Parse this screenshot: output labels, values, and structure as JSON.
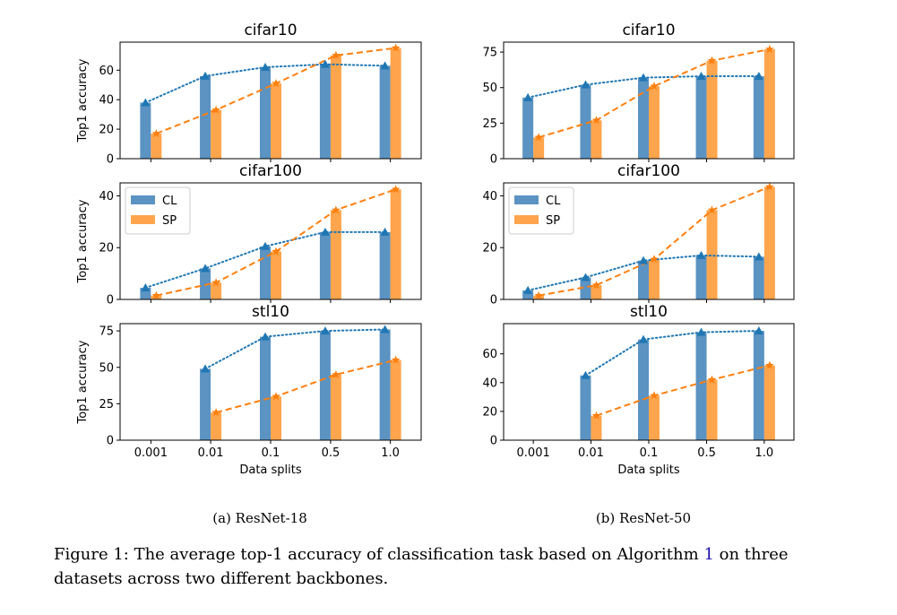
{
  "colors": {
    "CL": "#5b93c2",
    "SP": "#ffa54d",
    "CL_line": "#1f77b4",
    "SP_line": "#ff7f0e",
    "axes": "#000000"
  },
  "chart_data": [
    {
      "type": "bar",
      "panel": "ResNet-18 / cifar10",
      "title": "cifar10",
      "categories": [
        "0.001",
        "0.01",
        "0.1",
        "0.5",
        "1.0"
      ],
      "ylabel": "Top1 accuracy",
      "xlabel": "",
      "show_xticklabels": false,
      "ylim": [
        0,
        79
      ],
      "yticks": [
        0,
        20,
        40,
        60
      ],
      "legend": "none",
      "series": [
        {
          "name": "CL",
          "values": [
            38,
            56,
            62,
            64,
            63
          ]
        },
        {
          "name": "SP",
          "values": [
            17,
            33,
            51,
            70,
            75
          ]
        }
      ]
    },
    {
      "type": "bar",
      "panel": "ResNet-18 / cifar100",
      "title": "cifar100",
      "categories": [
        "0.001",
        "0.01",
        "0.1",
        "0.5",
        "1.0"
      ],
      "ylabel": "Top1 accuracy",
      "xlabel": "",
      "show_xticklabels": false,
      "ylim": [
        0,
        45
      ],
      "yticks": [
        0,
        20,
        40
      ],
      "legend": "upper left",
      "series": [
        {
          "name": "CL",
          "values": [
            4.5,
            12,
            20.5,
            26,
            26
          ]
        },
        {
          "name": "SP",
          "values": [
            1.5,
            6.5,
            18.5,
            34.5,
            42.5
          ]
        }
      ]
    },
    {
      "type": "bar",
      "panel": "ResNet-18 / stl10",
      "title": "stl10",
      "categories": [
        "0.001",
        "0.01",
        "0.1",
        "0.5",
        "1.0"
      ],
      "ylabel": "Top1 accuracy",
      "xlabel": "Data splits",
      "show_xticklabels": true,
      "ylim": [
        0,
        80
      ],
      "yticks": [
        0,
        25,
        50,
        75
      ],
      "legend": "none",
      "series": [
        {
          "name": "CL",
          "values": [
            null,
            49,
            71,
            75,
            76
          ]
        },
        {
          "name": "SP",
          "values": [
            null,
            19,
            30,
            45,
            55
          ]
        }
      ]
    },
    {
      "type": "bar",
      "panel": "ResNet-50 / cifar10",
      "title": "cifar10",
      "categories": [
        "0.001",
        "0.01",
        "0.1",
        "0.5",
        "1.0"
      ],
      "ylabel": "",
      "xlabel": "",
      "show_xticklabels": false,
      "ylim": [
        0,
        82
      ],
      "yticks": [
        0,
        25,
        50,
        75
      ],
      "legend": "none",
      "series": [
        {
          "name": "CL",
          "values": [
            43,
            52,
            57,
            58,
            58
          ]
        },
        {
          "name": "SP",
          "values": [
            15,
            27,
            51,
            69,
            77
          ]
        }
      ]
    },
    {
      "type": "bar",
      "panel": "ResNet-50 / cifar100",
      "title": "cifar100",
      "categories": [
        "0.001",
        "0.01",
        "0.1",
        "0.5",
        "1.0"
      ],
      "ylabel": "",
      "xlabel": "",
      "show_xticklabels": false,
      "ylim": [
        0,
        45
      ],
      "yticks": [
        0,
        20,
        40
      ],
      "legend": "upper left",
      "series": [
        {
          "name": "CL",
          "values": [
            3.5,
            8.5,
            15,
            17,
            16.5
          ]
        },
        {
          "name": "SP",
          "values": [
            1.5,
            5.5,
            15.5,
            34.5,
            43.5
          ]
        }
      ]
    },
    {
      "type": "bar",
      "panel": "ResNet-50 / stl10",
      "title": "stl10",
      "categories": [
        "0.001",
        "0.01",
        "0.1",
        "0.5",
        "1.0"
      ],
      "ylabel": "",
      "xlabel": "Data splits",
      "show_xticklabels": true,
      "ylim": [
        0,
        81
      ],
      "yticks": [
        0,
        20,
        40,
        60
      ],
      "legend": "none",
      "series": [
        {
          "name": "CL",
          "values": [
            null,
            45,
            70,
            75,
            76
          ]
        },
        {
          "name": "SP",
          "values": [
            null,
            17,
            31,
            42,
            52
          ]
        }
      ]
    }
  ],
  "subcaptions": [
    "(a) ResNet-18",
    "(b) ResNet-50"
  ],
  "caption": {
    "prefix": "Figure 1: The average top-1 accuracy of classification task based on Algorithm ",
    "ref": "1",
    "suffix": " on three datasets across two different backbones."
  }
}
